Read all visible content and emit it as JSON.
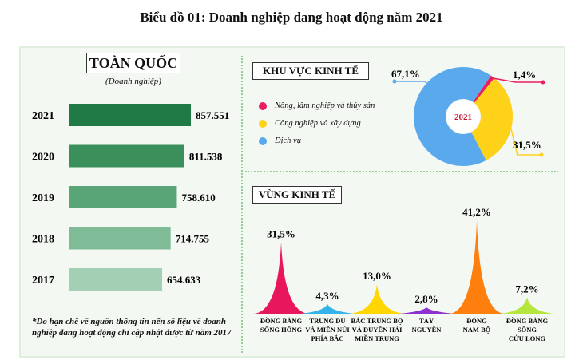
{
  "title": "Biểu đồ 01: Doanh nghiệp đang hoạt động năm 2021",
  "national": {
    "title": "TOÀN QUỐC",
    "unit": "(Doanh nghiệp)"
  },
  "sector": {
    "title": "KHU VỰC KINH TẾ",
    "center_label": "2021"
  },
  "region": {
    "title": "VÙNG KINH TẾ"
  },
  "footnote": "*Do hạn chế về nguồn thông tin nên số liệu về doanh nghiệp đang hoạt động chỉ cập nhật được từ năm 2017",
  "colors": {
    "bars": [
      "#1f7a45",
      "#3a8f5b",
      "#5aa577",
      "#7fbb97",
      "#a3cfb5"
    ],
    "pie": [
      "#e91e63",
      "#ffd21a",
      "#5aa9ec"
    ],
    "mountains": [
      "#e8175d",
      "#35b3e8",
      "#ffd600",
      "#8e2fd0",
      "#ff7f0e",
      "#b4e63d"
    ]
  },
  "chart_data": [
    {
      "type": "bar",
      "orientation": "horizontal",
      "categories": [
        "2021",
        "2020",
        "2019",
        "2018",
        "2017"
      ],
      "values": [
        857551,
        811538,
        758610,
        714755,
        654633
      ],
      "value_labels": [
        "857.551",
        "811.538",
        "758.610",
        "714.755",
        "654.633"
      ]
    },
    {
      "type": "pie",
      "labels": [
        "Nông, lâm nghiệp và thủy sản",
        "Công nghiệp và xây dựng",
        "Dịch vụ"
      ],
      "values": [
        1.4,
        31.5,
        67.1
      ],
      "value_labels": [
        "1,4%",
        "31,5%",
        "67,1%"
      ]
    },
    {
      "type": "area",
      "categories": [
        "ĐỒNG BẰNG SÔNG HỒNG",
        "TRUNG DU VÀ MIỀN NÚI PHÍA BẮC",
        "BẮC TRUNG BỘ VÀ DUYÊN HẢI MIỀN TRUNG",
        "TÂY NGUYÊN",
        "ĐÔNG NAM BỘ",
        "ĐỒNG BẰNG SÔNG CỬU LONG"
      ],
      "category_lines": [
        [
          "ĐỒNG BẰNG",
          "SÔNG HỒNG"
        ],
        [
          "TRUNG DU",
          "VÀ MIỀN NÚI",
          "PHÍA BẮC"
        ],
        [
          "BẮC TRUNG BỘ",
          "VÀ DUYÊN HẢI",
          "MIỀN TRUNG"
        ],
        [
          "TÂY",
          "NGUYÊN"
        ],
        [
          "ĐÔNG",
          "NAM BỘ"
        ],
        [
          "ĐỒNG BẰNG",
          "SÔNG",
          "CỬU LONG"
        ]
      ],
      "values": [
        31.5,
        4.3,
        13.0,
        2.8,
        41.2,
        7.2
      ],
      "value_labels": [
        "31,5%",
        "4,3%",
        "13,0%",
        "2,8%",
        "41,2%",
        "7,2%"
      ]
    }
  ]
}
